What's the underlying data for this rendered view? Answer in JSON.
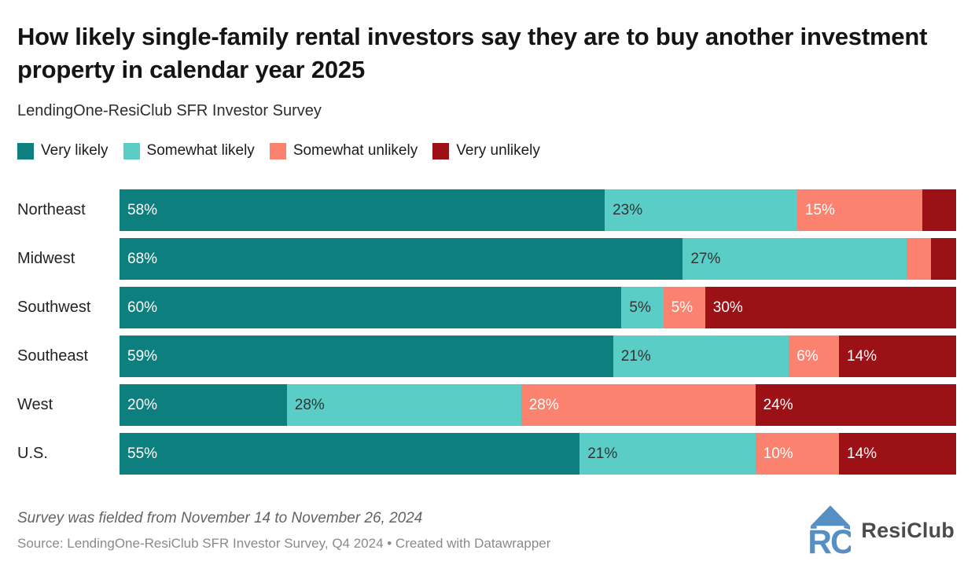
{
  "header": {
    "title": "How likely single-family rental investors say they are to buy another investment property in calendar year 2025",
    "subtitle": "LendingOne-ResiClub SFR Investor Survey"
  },
  "legend": {
    "items": [
      {
        "label": "Very likely",
        "color": "#0e7f7f"
      },
      {
        "label": "Somewhat likely",
        "color": "#5bcdc7"
      },
      {
        "label": "Somewhat unlikely",
        "color": "#fc8270"
      },
      {
        "label": "Very unlikely",
        "color": "#9c1116"
      }
    ]
  },
  "chart_data": {
    "type": "bar",
    "orientation": "horizontal",
    "stacked": true,
    "title": "How likely single-family rental investors say they are to buy another investment property in calendar year 2025",
    "subtitle": "LendingOne-ResiClub SFR Investor Survey",
    "categories": [
      "Northeast",
      "Midwest",
      "Southwest",
      "Southeast",
      "West",
      "U.S."
    ],
    "series": [
      {
        "name": "Very likely",
        "color": "#0e7f7f",
        "label_color": "#ffffff",
        "values": [
          58,
          68,
          60,
          59,
          20,
          55
        ]
      },
      {
        "name": "Somewhat likely",
        "color": "#5bcdc7",
        "label_color": "#333333",
        "values": [
          23,
          27,
          5,
          21,
          28,
          21
        ]
      },
      {
        "name": "Somewhat unlikely",
        "color": "#fc8270",
        "label_color": "#ffffff",
        "values": [
          15,
          3,
          5,
          6,
          28,
          10
        ]
      },
      {
        "name": "Very unlikely",
        "color": "#9c1116",
        "label_color": "#ffffff",
        "values": [
          4,
          3,
          30,
          14,
          24,
          14
        ]
      }
    ],
    "value_suffix": "%",
    "label_min_value": 5,
    "xlim": [
      0,
      100
    ],
    "grid": false,
    "legend_position": "top"
  },
  "footer": {
    "note": "Survey was fielded from November 14 to November 26, 2024",
    "source": "Source: LendingOne-ResiClub SFR Investor Survey, Q4 2024 • Created with Datawrapper",
    "brand": "ResiClub",
    "brand_color": "#568fc3"
  }
}
